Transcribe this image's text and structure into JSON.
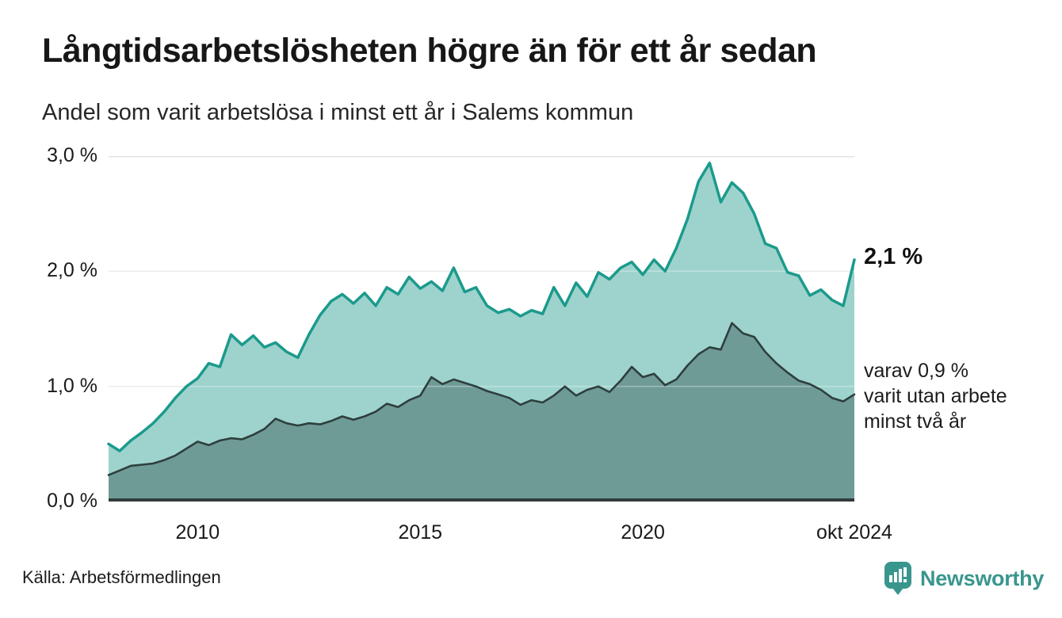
{
  "header": {
    "title": "Långtidsarbetslösheten högre än för ett år sedan",
    "subtitle": "Andel som varit arbetslösa i minst ett år i Salems kommun"
  },
  "chart_data": {
    "type": "area",
    "title": "Långtidsarbetslösheten högre än för ett år sedan",
    "subtitle": "Andel som varit arbetslösa i minst ett år i Salems kommun",
    "xlabel": "",
    "ylabel": "",
    "grid": true,
    "legend_position": "annotations-right",
    "xlim": [
      2008.0,
      2024.75
    ],
    "ylim": [
      0,
      3.0
    ],
    "x_start": 2008.0,
    "x_step": 0.25,
    "x_ticks": [
      {
        "t": 2010.0,
        "label": "2010"
      },
      {
        "t": 2015.0,
        "label": "2015"
      },
      {
        "t": 2020.0,
        "label": "2020"
      },
      {
        "t": 2024.75,
        "label": "okt 2024"
      }
    ],
    "y_ticks": [
      {
        "v": 3.0,
        "label": "3,0 %"
      },
      {
        "v": 2.0,
        "label": "2,0 %"
      },
      {
        "v": 1.0,
        "label": "1,0 %"
      },
      {
        "v": 0.0,
        "label": "0,0 %"
      }
    ],
    "colors": {
      "total_line": "#1b9a8c",
      "total_fill": "#9ed3cd",
      "two_year_line": "#2e3f3d",
      "two_year_fill": "#6f9b97",
      "gridline": "#e3e3e3",
      "axis": "#313d3b"
    },
    "series": [
      {
        "name": "Arbetslösa minst ett år",
        "unit": "%",
        "latest_value": 2.1,
        "values": [
          0.5,
          0.44,
          0.53,
          0.6,
          0.68,
          0.78,
          0.9,
          1.0,
          1.07,
          1.2,
          1.17,
          1.45,
          1.36,
          1.44,
          1.34,
          1.38,
          1.3,
          1.25,
          1.45,
          1.62,
          1.74,
          1.8,
          1.72,
          1.81,
          1.7,
          1.86,
          1.8,
          1.95,
          1.85,
          1.91,
          1.83,
          2.03,
          1.82,
          1.86,
          1.7,
          1.64,
          1.67,
          1.61,
          1.66,
          1.63,
          1.86,
          1.7,
          1.9,
          1.78,
          1.99,
          1.93,
          2.03,
          2.08,
          1.97,
          2.1,
          2.0,
          2.2,
          2.45,
          2.78,
          2.94,
          2.6,
          2.77,
          2.68,
          2.5,
          2.24,
          2.2,
          1.99,
          1.96,
          1.79,
          1.84,
          1.75,
          1.7,
          2.1
        ]
      },
      {
        "name": "Utan arbete minst två år",
        "unit": "%",
        "latest_value": 0.9,
        "values": [
          0.23,
          0.27,
          0.31,
          0.32,
          0.33,
          0.36,
          0.4,
          0.46,
          0.52,
          0.49,
          0.53,
          0.55,
          0.54,
          0.58,
          0.63,
          0.72,
          0.68,
          0.66,
          0.68,
          0.67,
          0.7,
          0.74,
          0.71,
          0.74,
          0.78,
          0.85,
          0.82,
          0.88,
          0.92,
          1.08,
          1.02,
          1.06,
          1.03,
          1.0,
          0.96,
          0.93,
          0.9,
          0.84,
          0.88,
          0.86,
          0.92,
          1.0,
          0.92,
          0.97,
          1.0,
          0.95,
          1.05,
          1.17,
          1.08,
          1.11,
          1.01,
          1.06,
          1.18,
          1.28,
          1.34,
          1.32,
          1.55,
          1.46,
          1.43,
          1.3,
          1.2,
          1.12,
          1.05,
          1.02,
          0.97,
          0.9,
          0.87,
          0.93
        ]
      }
    ]
  },
  "annotations": {
    "latest_total": "2,1 %",
    "latest_two_years": "varav 0,9 %\nvarit utan arbete\nminst två år"
  },
  "footer": {
    "source": "Källa: Arbetsförmedlingen",
    "brand": "Newsworthy"
  }
}
